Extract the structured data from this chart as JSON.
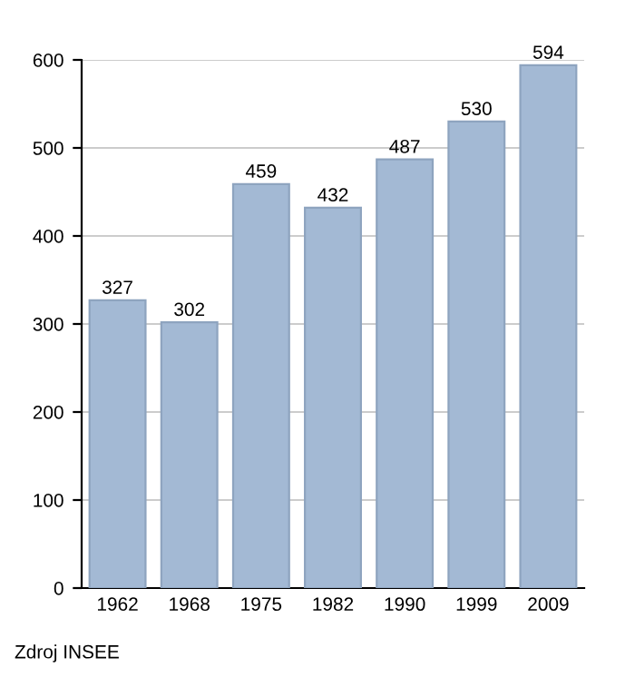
{
  "chart_data": {
    "type": "bar",
    "categories": [
      "1962",
      "1968",
      "1975",
      "1982",
      "1990",
      "1999",
      "2009"
    ],
    "values": [
      327,
      302,
      459,
      432,
      487,
      530,
      594
    ],
    "color": "#a3b9d4",
    "data_labels": true,
    "ylim": [
      0,
      600
    ],
    "yticks": [
      0,
      100,
      200,
      300,
      400,
      500,
      600
    ],
    "grid": "y",
    "annotations": [
      "Zdroj INSEE"
    ]
  }
}
